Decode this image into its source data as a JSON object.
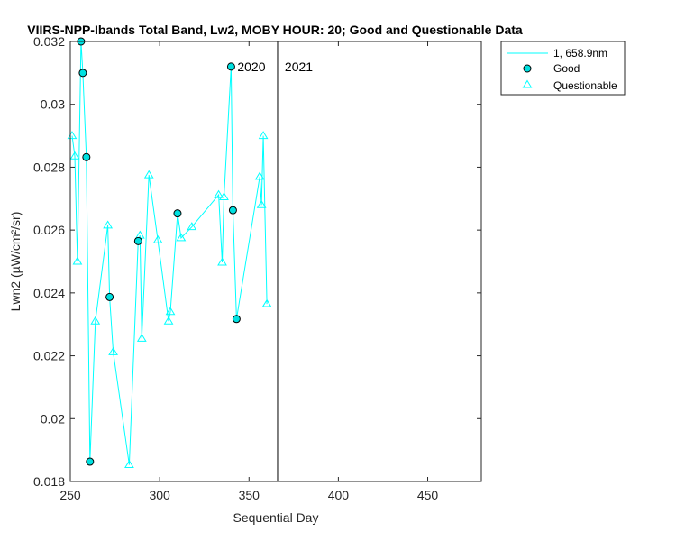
{
  "chart_data": {
    "type": "line",
    "title": "VIIRS-NPP-Ibands Total Band, Lw2, MOBY HOUR: 20;  Good and Questionable Data",
    "xlabel": "Sequential Day",
    "ylabel": "Lwn2 (µW/cm²/sr)",
    "xlim": [
      250,
      480
    ],
    "ylim": [
      0.018,
      0.032
    ],
    "xticks": [
      250,
      300,
      350,
      400,
      450
    ],
    "yticks": [
      0.018,
      0.02,
      0.022,
      0.024,
      0.026,
      0.028,
      0.03,
      0.032
    ],
    "ytick_labels": [
      "0.018",
      "0.02",
      "0.022",
      "0.024",
      "0.026",
      "0.028",
      "0.03",
      "0.032"
    ],
    "grid": false,
    "legend_position": "outside top-right",
    "year_divider_x": 366,
    "annotations": [
      {
        "text": "2020",
        "x": 343.5,
        "y": 0.0312
      },
      {
        "text": "2021",
        "x": 370,
        "y": 0.0312
      }
    ],
    "colors": {
      "line": "#00ffff",
      "marker_face": "#00e0e0",
      "marker_edge": "#000000",
      "axis": "#262626"
    },
    "series": [
      {
        "name": "1, 658.9nm",
        "x": [
          251,
          252.5,
          254,
          256,
          257,
          259,
          261,
          264,
          271,
          272,
          274,
          283,
          288,
          289,
          290,
          294,
          299,
          305,
          306,
          310,
          312,
          318,
          333,
          335,
          336,
          340,
          341,
          343,
          356,
          357,
          358,
          360
        ],
        "y": [
          0.029,
          0.02835,
          0.025,
          0.032,
          0.031,
          0.02832,
          0.01863,
          0.0231,
          0.02615,
          0.02387,
          0.02212,
          0.01853,
          0.02565,
          0.02583,
          0.02255,
          0.02775,
          0.02568,
          0.0231,
          0.0234,
          0.02653,
          0.02575,
          0.0261,
          0.02712,
          0.02497,
          0.02705,
          0.0312,
          0.02663,
          0.02317,
          0.0277,
          0.0268,
          0.029,
          0.02365
        ]
      },
      {
        "name": "Good",
        "x": [
          256,
          257,
          259,
          261,
          272,
          288,
          310,
          340,
          341,
          343
        ],
        "y": [
          0.032,
          0.031,
          0.02832,
          0.01863,
          0.02387,
          0.02565,
          0.02653,
          0.0312,
          0.02663,
          0.02317
        ]
      },
      {
        "name": "Questionable",
        "x": [
          251,
          252.5,
          254,
          264,
          271,
          274,
          283,
          289,
          290,
          294,
          299,
          305,
          306,
          312,
          318,
          333,
          335,
          336,
          356,
          357,
          358,
          360
        ],
        "y": [
          0.029,
          0.02835,
          0.025,
          0.0231,
          0.02615,
          0.02212,
          0.01853,
          0.02583,
          0.02255,
          0.02775,
          0.02568,
          0.0231,
          0.0234,
          0.02575,
          0.0261,
          0.02712,
          0.02497,
          0.02705,
          0.0277,
          0.0268,
          0.029,
          0.02365
        ]
      }
    ]
  }
}
